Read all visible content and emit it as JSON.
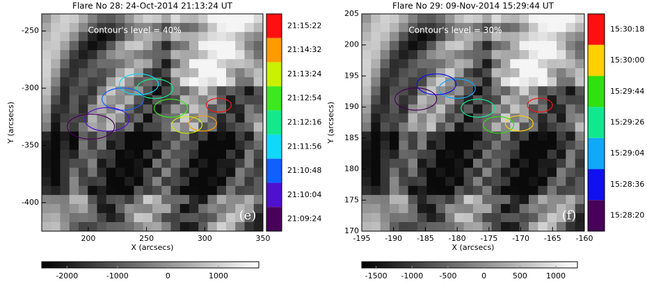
{
  "chart_data": [
    {
      "type": "image",
      "title": "Flare No 28: 24-Oct-2014 21:13:24 UT",
      "annotation": "Contour's level = 40%",
      "panel_label": "(e)",
      "xlabel": "X (arcsecs)",
      "ylabel": "Y (arcsecs)",
      "xlim": [
        160,
        350
      ],
      "ylim": [
        -425,
        -235
      ],
      "xticks": [
        200,
        250,
        300,
        350
      ],
      "yticks": [
        -400,
        -350,
        -300,
        -250
      ],
      "time_levels": [
        {
          "label": "21:15:22",
          "color": "#ff1010"
        },
        {
          "label": "21:14:32",
          "color": "#ff9a00"
        },
        {
          "label": "21:13:24",
          "color": "#c8f000"
        },
        {
          "label": "21:12:54",
          "color": "#3ce81e"
        },
        {
          "label": "21:12:16",
          "color": "#14e88c"
        },
        {
          "label": "21:11:56",
          "color": "#10d8f8"
        },
        {
          "label": "21:10:48",
          "color": "#1060ff"
        },
        {
          "label": "21:10:04",
          "color": "#5010d0"
        },
        {
          "label": "21:09:24",
          "color": "#48005a"
        }
      ],
      "colorbar": {
        "lim": [
          -2500,
          1800
        ],
        "ticks": [
          -2000,
          -1000,
          0,
          1000
        ]
      }
    },
    {
      "type": "image",
      "title": "Flare No 29: 09-Nov-2014 15:29:44 UT",
      "annotation": "Contour's level = 30%",
      "panel_label": "(f)",
      "xlabel": "X (arcsecs)",
      "ylabel": "Y (arcsecs)",
      "xlim": [
        -195,
        -160
      ],
      "ylim": [
        170,
        205
      ],
      "xticks": [
        -195,
        -190,
        -185,
        -180,
        -175,
        -170,
        -165,
        -160
      ],
      "yticks": [
        170,
        175,
        180,
        185,
        190,
        195,
        200,
        205
      ],
      "time_levels": [
        {
          "label": "15:30:18",
          "color": "#ff1010"
        },
        {
          "label": "15:30:00",
          "color": "#ffd000"
        },
        {
          "label": "15:29:44",
          "color": "#30e010"
        },
        {
          "label": "15:29:26",
          "color": "#10e890"
        },
        {
          "label": "15:29:04",
          "color": "#10a8f8"
        },
        {
          "label": "15:28:36",
          "color": "#1010f0"
        },
        {
          "label": "15:28:20",
          "color": "#48005a"
        }
      ],
      "colorbar": {
        "lim": [
          -1700,
          1300
        ],
        "ticks": [
          -1500,
          -1000,
          -500,
          0,
          500,
          1000
        ]
      }
    }
  ]
}
